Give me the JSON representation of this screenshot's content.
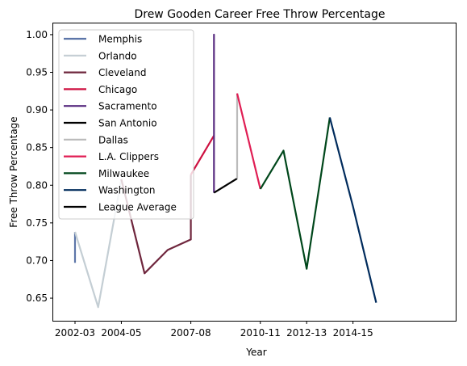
{
  "chart_data": {
    "type": "line",
    "title": "Drew Gooden Career Free Throw Percentage",
    "xlabel": "Year",
    "ylabel": "Free Throw Percentage",
    "x_ticks": [
      "2002-03",
      "2004-05",
      "2007-08",
      "2010-11",
      "2012-13",
      "2014-15"
    ],
    "y_ticks": [
      "0.65",
      "0.70",
      "0.75",
      "0.80",
      "0.85",
      "0.90",
      "0.95",
      "1.00"
    ],
    "ylim": [
      0.62,
      1.016
    ],
    "legend_position": "upper left",
    "series": [
      {
        "name": "Memphis",
        "color": "#5d76a9",
        "points": [
          [
            "2002-03",
            0.697
          ],
          [
            "2002-03",
            0.738
          ]
        ]
      },
      {
        "name": "Orlando",
        "color": "#c4ced4",
        "points": [
          [
            "2002-03",
            0.738
          ],
          [
            "2003-04",
            0.638
          ],
          [
            "2004-05",
            0.808
          ]
        ]
      },
      {
        "name": "Cleveland",
        "color": "#6f263d",
        "points": [
          [
            "2004-05",
            0.808
          ],
          [
            "2005-06",
            0.683
          ],
          [
            "2006-07",
            0.714
          ],
          [
            "2007-08",
            0.728
          ],
          [
            "2007-08",
            0.814
          ]
        ]
      },
      {
        "name": "Chicago",
        "color": "#ce1141",
        "points": [
          [
            "2007-08",
            0.814
          ],
          [
            "2008-09",
            0.866
          ]
        ]
      },
      {
        "name": "Sacramento",
        "color": "#5a2d81",
        "points": [
          [
            "2008-09",
            0.866
          ],
          [
            "2008-09",
            1.0
          ],
          [
            "2008-09",
            0.79
          ]
        ]
      },
      {
        "name": "San Antonio",
        "color": "#000000",
        "points": [
          [
            "2008-09",
            0.79
          ],
          [
            "2009-10",
            0.809
          ]
        ]
      },
      {
        "name": "Dallas",
        "color": "#bbbbbb",
        "points": [
          [
            "2009-10",
            0.809
          ],
          [
            "2009-10",
            0.922
          ]
        ]
      },
      {
        "name": "L.A. Clippers",
        "color": "#e01e54",
        "points": [
          [
            "2009-10",
            0.922
          ],
          [
            "2010-11",
            0.795
          ]
        ]
      },
      {
        "name": "Milwaukee",
        "color": "#00471b",
        "points": [
          [
            "2010-11",
            0.795
          ],
          [
            "2011-12",
            0.846
          ],
          [
            "2012-13",
            0.689
          ],
          [
            "2013-14",
            0.89
          ]
        ]
      },
      {
        "name": "Washington",
        "color": "#002b5c",
        "points": [
          [
            "2013-14",
            0.89
          ],
          [
            "2014-15",
            0.772
          ],
          [
            "2015-16",
            0.644
          ]
        ]
      },
      {
        "name": "League Average",
        "color": "#000000",
        "points": []
      }
    ]
  }
}
